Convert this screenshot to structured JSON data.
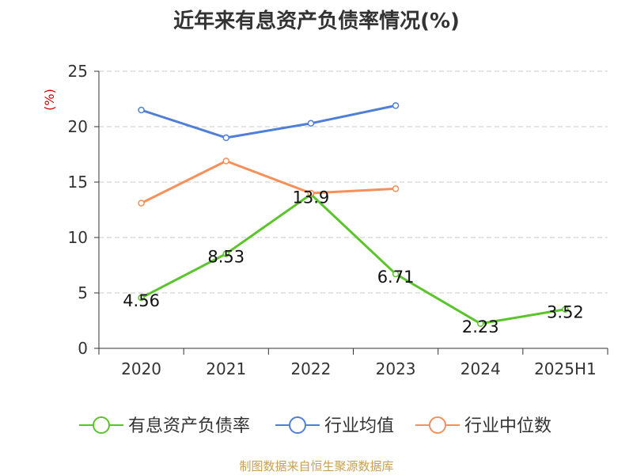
{
  "chart_data": {
    "type": "line",
    "title": "近年来有息资产负债率情况(%)",
    "ylabel": "(%)",
    "xlabel": "",
    "categories": [
      "2020",
      "2021",
      "2022",
      "2023",
      "2024",
      "2025H1"
    ],
    "ylim": [
      0,
      25
    ],
    "yticks": [
      0,
      5,
      10,
      15,
      20,
      25
    ],
    "grid": true,
    "legend_position": "bottom",
    "series": [
      {
        "name": "有息资产负债率",
        "color": "#5bc42a",
        "values": [
          4.56,
          8.53,
          13.9,
          6.71,
          2.23,
          3.52
        ],
        "labels": [
          "4.56",
          "8.53",
          "13.9",
          "6.71",
          "2.23",
          "3.52"
        ]
      },
      {
        "name": "行业均值",
        "color": "#4f7fd6",
        "values": [
          21.5,
          19.0,
          20.3,
          21.9,
          null,
          null
        ]
      },
      {
        "name": "行业中位数",
        "color": "#f5905a",
        "values": [
          13.1,
          16.9,
          14.0,
          14.4,
          null,
          null
        ]
      }
    ]
  },
  "source": "制图数据来自恒生聚源数据库"
}
